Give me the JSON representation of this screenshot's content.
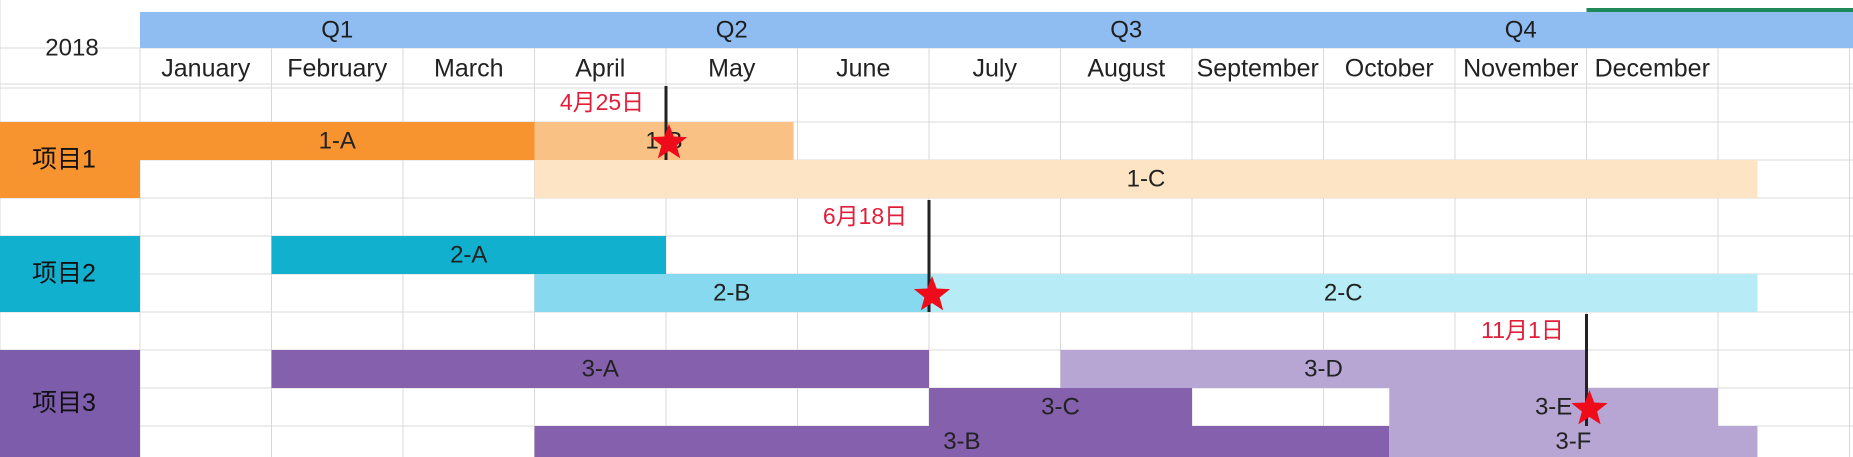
{
  "chart_data": {
    "type": "gantt",
    "year": "2018",
    "quarters": [
      {
        "label": "Q1",
        "start_month": 0,
        "end_month": 3
      },
      {
        "label": "Q2",
        "start_month": 3,
        "end_month": 6
      },
      {
        "label": "Q3",
        "start_month": 6,
        "end_month": 9
      },
      {
        "label": "Q4",
        "start_month": 9,
        "end_month": 12
      }
    ],
    "months": [
      "January",
      "February",
      "March",
      "April",
      "May",
      "June",
      "July",
      "August",
      "September",
      "October",
      "November",
      "December"
    ],
    "projects": [
      {
        "label": "项目1",
        "color": "#f7942f",
        "rows": [
          0,
          1
        ]
      },
      {
        "label": "项目2",
        "color": "#12b0cf",
        "rows": [
          3,
          4
        ]
      },
      {
        "label": "项目3",
        "color": "#7d5cab",
        "rows": [
          6,
          7,
          8
        ]
      }
    ],
    "tasks": [
      {
        "label": "1-A",
        "row": 0,
        "start": 0,
        "end": 3,
        "color": "#f7942f"
      },
      {
        "label": "1-B",
        "row": 0,
        "start": 3,
        "end": 4.97,
        "color": "#fac185"
      },
      {
        "label": "1-C",
        "row": 1,
        "start": 3,
        "end": 12.3,
        "color": "#fde4c4"
      },
      {
        "label": "2-A",
        "row": 3,
        "start": 1,
        "end": 4,
        "color": "#12b0cf"
      },
      {
        "label": "2-B",
        "row": 4,
        "start": 3,
        "end": 6,
        "color": "#86d9ee"
      },
      {
        "label": "2-C",
        "row": 4,
        "start": 6,
        "end": 12.3,
        "color": "#b7ecf7"
      },
      {
        "label": "3-A",
        "row": 6,
        "start": 1,
        "end": 6,
        "color": "#8460ad"
      },
      {
        "label": "3-D",
        "row": 6,
        "start": 7,
        "end": 11,
        "color": "#b7a5d3"
      },
      {
        "label": "3-C",
        "row": 7,
        "start": 6,
        "end": 8,
        "color": "#8460ad"
      },
      {
        "label": "3-E",
        "row": 7,
        "start": 9.5,
        "end": 12,
        "color": "#b7a5d3"
      },
      {
        "label": "3-B",
        "row": 8,
        "start": 3,
        "end": 9.5,
        "color": "#8460ad"
      },
      {
        "label": "3-F",
        "row": 8,
        "start": 9.5,
        "end": 12.3,
        "color": "#b7a5d3"
      }
    ],
    "milestones": [
      {
        "label": "4月25日",
        "month_pos": 4.0,
        "label_row": -1,
        "star_row": 0
      },
      {
        "label": "6月18日",
        "month_pos": 6.0,
        "label_row": 2,
        "star_row": 4
      },
      {
        "label": "11月1日",
        "month_pos": 11.0,
        "label_row": 5,
        "star_row": 7
      }
    ],
    "grid": true,
    "colors": {
      "header": "#8fbdf2",
      "grid": "#d9d9d9",
      "milestone_text": "#e0203a",
      "star": "#ee0c1a"
    }
  }
}
